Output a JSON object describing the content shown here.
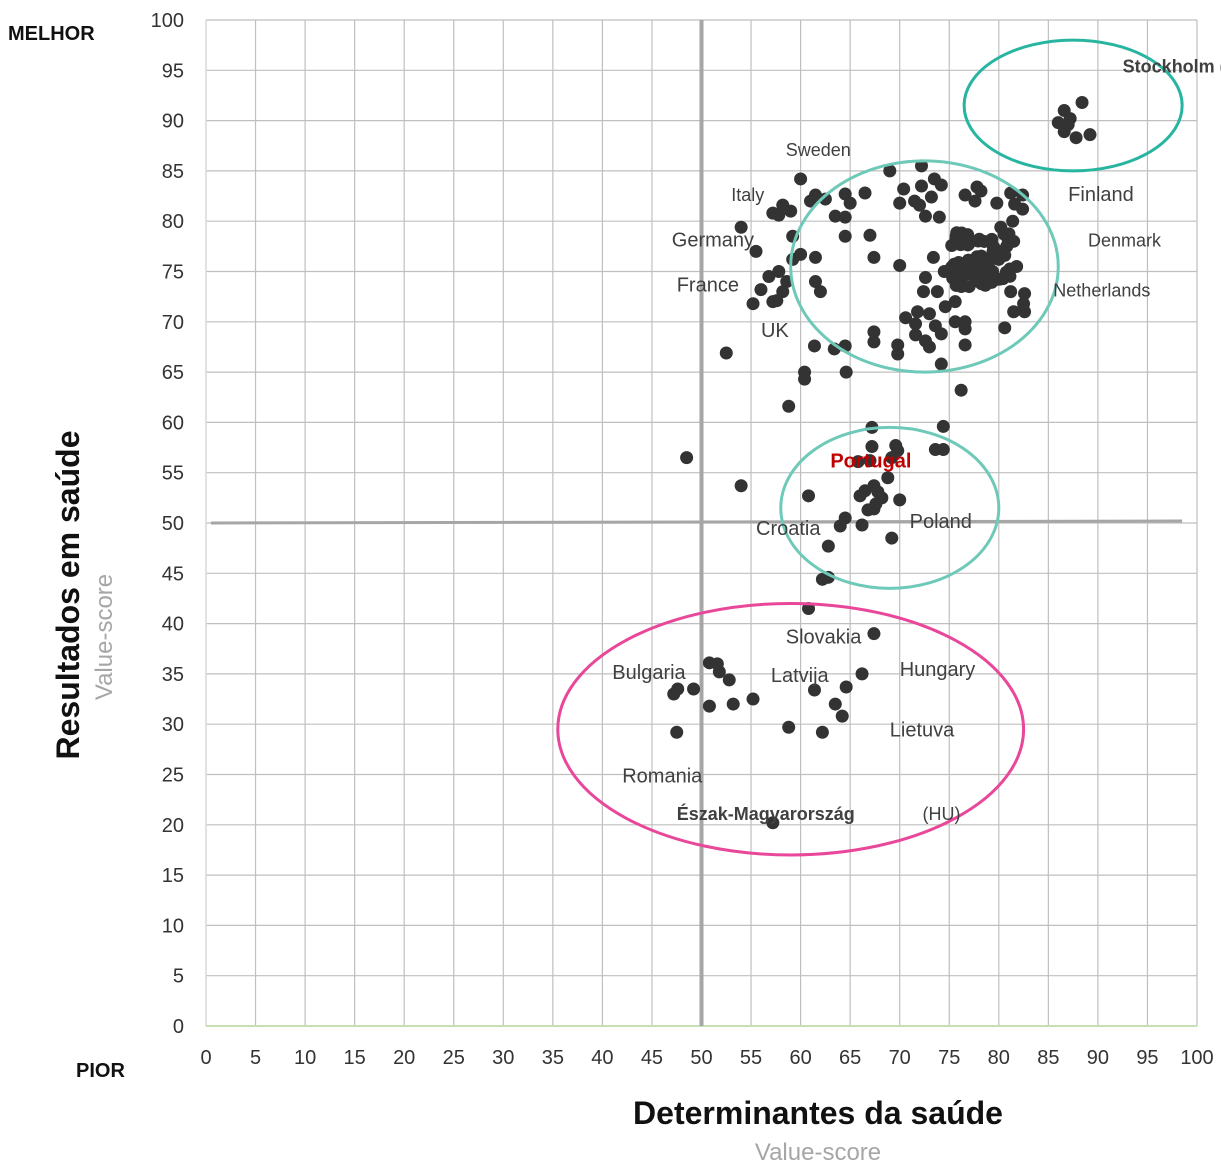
{
  "chart_data": {
    "type": "scatter",
    "xlabel": "Determinantes da saúde",
    "xlabel_sub": "Value-score",
    "ylabel": "Resultados em saúde",
    "ylabel_sub": "Value-score",
    "corner_top": "MELHOR",
    "corner_bottom": "PIOR",
    "xlim": [
      0,
      100
    ],
    "ylim": [
      0,
      100
    ],
    "x_ticks": [
      0,
      5,
      10,
      15,
      20,
      25,
      30,
      35,
      40,
      45,
      50,
      55,
      60,
      65,
      70,
      75,
      80,
      85,
      90,
      95,
      100
    ],
    "y_ticks": [
      0,
      5,
      10,
      15,
      20,
      25,
      30,
      35,
      40,
      45,
      50,
      55,
      60,
      65,
      70,
      75,
      80,
      85,
      90,
      95,
      100
    ],
    "grid": true,
    "reference_lines": {
      "x": 50,
      "y": 50
    },
    "colors": {
      "points": "#333333",
      "grid": "#bfbfbf",
      "reference": "#a6a6a6",
      "cluster_top": "#28b5a0",
      "cluster_main": "#6fc9b8",
      "cluster_mid": "#6fc9b8",
      "cluster_low": "#e8479a",
      "portugal": "#c00000"
    },
    "clusters": [
      {
        "name": "top",
        "color": "#28b5a0",
        "cx": 87.5,
        "cy": 91.5,
        "rx": 11,
        "ry": 6.5
      },
      {
        "name": "main",
        "color": "#6fc9b8",
        "cx": 72.5,
        "cy": 75.5,
        "rx": 13.5,
        "ry": 10.5
      },
      {
        "name": "mid",
        "color": "#6fc9b8",
        "cx": 69,
        "cy": 51.5,
        "rx": 11,
        "ry": 8
      },
      {
        "name": "low",
        "color": "#e8479a",
        "cx": 59,
        "cy": 29.5,
        "rx": 23.5,
        "ry": 12.5
      }
    ],
    "annotations": [
      {
        "text": "Stockholm (SE)",
        "x": 92.5,
        "y": 94.8,
        "bold": true,
        "small": true
      },
      {
        "text": "Sweden",
        "x": 58.5,
        "y": 86.5,
        "small": true
      },
      {
        "text": "Italy",
        "x": 53,
        "y": 82,
        "small": true
      },
      {
        "text": "Finland",
        "x": 87,
        "y": 82
      },
      {
        "text": "Germany",
        "x": 47,
        "y": 77.5
      },
      {
        "text": "Denmark",
        "x": 89,
        "y": 77.5,
        "small": true
      },
      {
        "text": "France",
        "x": 47.5,
        "y": 73
      },
      {
        "text": "Netherlands",
        "x": 85.5,
        "y": 72.5,
        "small": true
      },
      {
        "text": "UK",
        "x": 56,
        "y": 68.5
      },
      {
        "text": "Portugal",
        "x": 63,
        "y": 55.5,
        "bold": true,
        "color": "#c00000"
      },
      {
        "text": "Croatia",
        "x": 55.5,
        "y": 48.8
      },
      {
        "text": "Poland",
        "x": 71,
        "y": 49.5
      },
      {
        "text": "Slovakia",
        "x": 58.5,
        "y": 38
      },
      {
        "text": "Bulgaria",
        "x": 41,
        "y": 34.5
      },
      {
        "text": "Latvija",
        "x": 57,
        "y": 34.2
      },
      {
        "text": "Hungary",
        "x": 70,
        "y": 34.8
      },
      {
        "text": "Lietuva",
        "x": 69,
        "y": 28.8
      },
      {
        "text": "Romania",
        "x": 42,
        "y": 24.2
      },
      {
        "text": "Észak-Magyarország",
        "x": 47.5,
        "y": 20.5,
        "bold": true,
        "small": true
      },
      {
        "text": " (HU)",
        "x": 72.3,
        "y": 20.5,
        "small": true
      }
    ],
    "points": [
      [
        86,
        89.8
      ],
      [
        86.6,
        91
      ],
      [
        87.2,
        90.2
      ],
      [
        87.8,
        88.3
      ],
      [
        88.4,
        91.8
      ],
      [
        89.2,
        88.6
      ],
      [
        86.6,
        88.9
      ],
      [
        87,
        89.6
      ],
      [
        73.5,
        84.2
      ],
      [
        74.2,
        83.6
      ],
      [
        72.2,
        85.5
      ],
      [
        69,
        85
      ],
      [
        66.5,
        82.8
      ],
      [
        64.5,
        82.7
      ],
      [
        65,
        81.8
      ],
      [
        63.5,
        80.5
      ],
      [
        62.5,
        82.2
      ],
      [
        61.5,
        82.6
      ],
      [
        61,
        82
      ],
      [
        59,
        81
      ],
      [
        57.8,
        80.6
      ],
      [
        57.2,
        80.8
      ],
      [
        58.2,
        81.6
      ],
      [
        60,
        84.2
      ],
      [
        54,
        79.4
      ],
      [
        55.5,
        77
      ],
      [
        59.2,
        78.5
      ],
      [
        59.2,
        76.2
      ],
      [
        60,
        76.7
      ],
      [
        61.5,
        76.4
      ],
      [
        57.8,
        75
      ],
      [
        56.8,
        74.5
      ],
      [
        58.6,
        74
      ],
      [
        58.2,
        73
      ],
      [
        57.2,
        72
      ],
      [
        56,
        73.2
      ],
      [
        55.2,
        71.8
      ],
      [
        57.6,
        72.1
      ],
      [
        61.5,
        74
      ],
      [
        62,
        73
      ],
      [
        64.5,
        78.5
      ],
      [
        64.5,
        80.4
      ],
      [
        67,
        78.6
      ],
      [
        67.4,
        76.4
      ],
      [
        70,
        75.6
      ],
      [
        70,
        81.8
      ],
      [
        70.4,
        83.2
      ],
      [
        71.5,
        82
      ],
      [
        72.2,
        83.5
      ],
      [
        72,
        81.6
      ],
      [
        72.6,
        80.5
      ],
      [
        73.2,
        82.4
      ],
      [
        74,
        80.4
      ],
      [
        73.4,
        76.4
      ],
      [
        74.5,
        75
      ],
      [
        72.6,
        74.4
      ],
      [
        72.4,
        73
      ],
      [
        73.8,
        73
      ],
      [
        71.8,
        71
      ],
      [
        70.6,
        70.4
      ],
      [
        73,
        70.8
      ],
      [
        74.6,
        71.5
      ],
      [
        73.6,
        69.6
      ],
      [
        74.2,
        68.8
      ],
      [
        72.6,
        68.1
      ],
      [
        73,
        67.5
      ],
      [
        71.6,
        68.7
      ],
      [
        69.8,
        67.7
      ],
      [
        69.8,
        66.8
      ],
      [
        74.2,
        65.8
      ],
      [
        67.4,
        68
      ],
      [
        67.4,
        69
      ],
      [
        71.6,
        69.8
      ],
      [
        75.6,
        70
      ],
      [
        76.6,
        69.3
      ],
      [
        76.6,
        67.7
      ],
      [
        76.6,
        70
      ],
      [
        77,
        73.5
      ],
      [
        75.6,
        72
      ],
      [
        80.6,
        69.4
      ],
      [
        81.5,
        71
      ],
      [
        82.6,
        71
      ],
      [
        82.5,
        71.8
      ],
      [
        82.6,
        72.8
      ],
      [
        81.2,
        73
      ],
      [
        81.8,
        75.5
      ],
      [
        81.5,
        78
      ],
      [
        81.4,
        80
      ],
      [
        81.6,
        81.7
      ],
      [
        82.4,
        82.6
      ],
      [
        82.4,
        81.2
      ],
      [
        81.2,
        82.8
      ],
      [
        79.8,
        81.8
      ],
      [
        78.2,
        83
      ],
      [
        77.8,
        83.4
      ],
      [
        77.6,
        82
      ],
      [
        76.6,
        82.6
      ],
      [
        80.8,
        77.5
      ],
      [
        80.6,
        76.6
      ],
      [
        80,
        76.2
      ],
      [
        80.2,
        79.4
      ],
      [
        76.2,
        63.2
      ],
      [
        64.5,
        67.6
      ],
      [
        61.4,
        67.6
      ],
      [
        63.4,
        67.3
      ],
      [
        60.4,
        65
      ],
      [
        60.4,
        64.3
      ],
      [
        64.6,
        65
      ],
      [
        58.8,
        61.6
      ],
      [
        52.5,
        66.9
      ],
      [
        48.5,
        56.5
      ],
      [
        54,
        53.7
      ],
      [
        67.2,
        59.5
      ],
      [
        67.2,
        57.6
      ],
      [
        69.6,
        57.7
      ],
      [
        69.8,
        57.2
      ],
      [
        73.6,
        57.3
      ],
      [
        74.4,
        57.3
      ],
      [
        74.4,
        59.6
      ],
      [
        67,
        56.2
      ],
      [
        69.2,
        56.5
      ],
      [
        65.8,
        56.1
      ],
      [
        68.8,
        54.5
      ],
      [
        67.4,
        53.7
      ],
      [
        66.5,
        53.2
      ],
      [
        67.8,
        53.1
      ],
      [
        68.2,
        52.5
      ],
      [
        67.6,
        51.9
      ],
      [
        66.8,
        51.3
      ],
      [
        67.4,
        51.4
      ],
      [
        70,
        52.3
      ],
      [
        66,
        52.7
      ],
      [
        64.5,
        50.5
      ],
      [
        60.8,
        52.7
      ],
      [
        64,
        49.7
      ],
      [
        66.2,
        49.8
      ],
      [
        69.2,
        48.5
      ],
      [
        62.8,
        47.7
      ],
      [
        62.2,
        44.4
      ],
      [
        62.8,
        44.6
      ],
      [
        60.8,
        41.5
      ],
      [
        67.4,
        39
      ],
      [
        50.8,
        36.1
      ],
      [
        51.6,
        36
      ],
      [
        51.8,
        35.2
      ],
      [
        52.8,
        34.4
      ],
      [
        47.6,
        33.5
      ],
      [
        49.2,
        33.5
      ],
      [
        47.2,
        33
      ],
      [
        50.8,
        31.8
      ],
      [
        53.2,
        32
      ],
      [
        55.2,
        32.5
      ],
      [
        61.4,
        33.4
      ],
      [
        64.6,
        33.7
      ],
      [
        66.2,
        35
      ],
      [
        63.5,
        32
      ],
      [
        64.2,
        30.8
      ],
      [
        58.8,
        29.7
      ],
      [
        62.2,
        29.2
      ],
      [
        47.5,
        29.2
      ],
      [
        57.2,
        20.2
      ]
    ]
  }
}
